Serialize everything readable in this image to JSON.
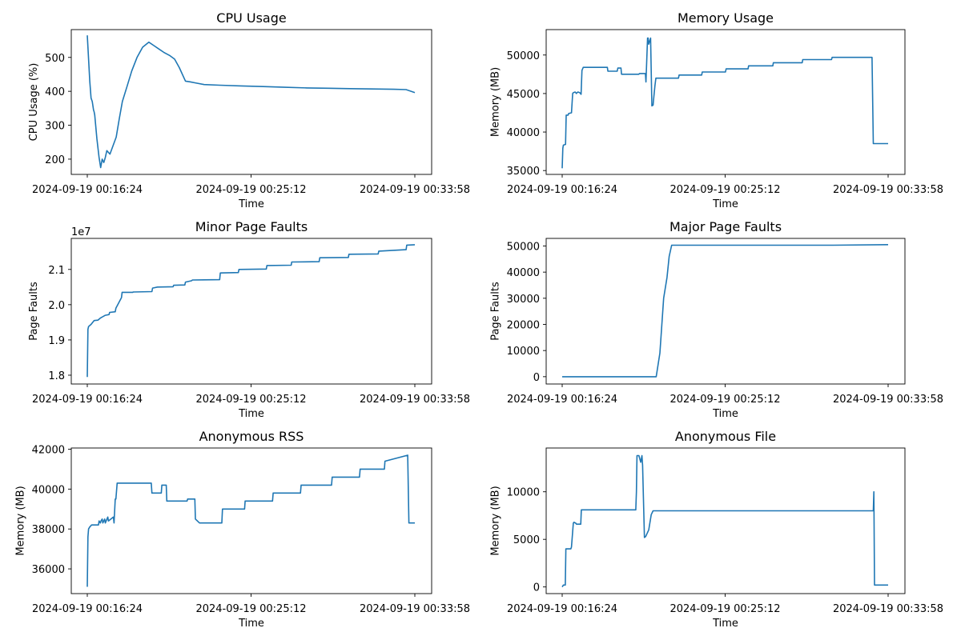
{
  "figure": {
    "line_color": "#1f77b4",
    "background": "#ffffff"
  },
  "chart_data": [
    {
      "type": "line",
      "title": "CPU Usage",
      "xlabel": "Time",
      "ylabel": "CPU Usage (%)",
      "x_ticks": [
        "2024-09-19 00:16:24",
        "2024-09-19 00:25:12",
        "2024-09-19 00:33:58"
      ],
      "y_ticks": [
        "200",
        "300",
        "400",
        "500"
      ],
      "y_tick_values": [
        200,
        300,
        400,
        500
      ],
      "ylim": [
        155,
        582
      ],
      "y_offset_label": "",
      "x": [
        "00:16:24",
        "00:16:32",
        "00:16:36",
        "00:16:40",
        "00:16:44",
        "00:16:46",
        "00:16:48",
        "00:16:55",
        "00:17:02",
        "00:17:07",
        "00:17:12",
        "00:17:17",
        "00:17:22",
        "00:17:27",
        "00:17:37",
        "00:17:47",
        "00:17:57",
        "00:18:07",
        "00:18:17",
        "00:18:32",
        "00:18:47",
        "00:19:04",
        "00:19:22",
        "00:19:42",
        "00:19:58",
        "00:20:14",
        "00:20:30",
        "00:20:50",
        "00:21:05",
        "00:21:20",
        "00:21:40",
        "00:21:55",
        "00:22:12",
        "00:22:40",
        "00:23:30",
        "00:24:40",
        "00:25:50",
        "00:27:00",
        "00:28:10",
        "00:29:20",
        "00:30:30",
        "00:31:40",
        "00:32:50",
        "00:33:30",
        "00:33:58"
      ],
      "series": [
        {
          "values": [
            565,
            430,
            380,
            370,
            345,
            340,
            330,
            260,
            205,
            175,
            200,
            190,
            205,
            225,
            215,
            240,
            265,
            320,
            370,
            415,
            460,
            500,
            530,
            545,
            535,
            525,
            515,
            505,
            495,
            470,
            430,
            428,
            425,
            420,
            418,
            416,
            414,
            412,
            410,
            409,
            408,
            407,
            406,
            405,
            396
          ]
        }
      ]
    },
    {
      "type": "line",
      "title": "Memory Usage",
      "xlabel": "Time",
      "ylabel": "Memory (MB)",
      "x_ticks": [
        "2024-09-19 00:16:24",
        "2024-09-19 00:25:12",
        "2024-09-19 00:33:58"
      ],
      "y_ticks": [
        "35000",
        "40000",
        "45000",
        "50000"
      ],
      "y_tick_values": [
        35000,
        40000,
        45000,
        50000
      ],
      "ylim": [
        34500,
        53300
      ],
      "y_offset_label": "",
      "x": [
        "00:16:24",
        "00:16:26",
        "00:16:28",
        "00:16:35",
        "00:16:37",
        "00:16:43",
        "00:16:45",
        "00:16:54",
        "00:16:58",
        "00:17:00",
        "00:17:06",
        "00:17:10",
        "00:17:12",
        "00:17:15",
        "00:17:21",
        "00:17:25",
        "00:17:28",
        "00:17:32",
        "00:17:35",
        "00:17:37",
        "00:17:40",
        "00:18:50",
        "00:18:52",
        "00:19:22",
        "00:19:24",
        "00:19:34",
        "00:19:36",
        "00:20:32",
        "00:20:34",
        "00:20:53",
        "00:20:55",
        "00:21:00",
        "00:21:02",
        "00:21:04",
        "00:21:10",
        "00:21:14",
        "00:21:18",
        "00:21:20",
        "00:21:24",
        "00:21:27",
        "00:21:32",
        "00:21:42",
        "00:21:52",
        "00:22:40",
        "00:22:42",
        "00:23:55",
        "00:23:57",
        "00:25:12",
        "00:25:14",
        "00:26:25",
        "00:26:27",
        "00:27:45",
        "00:27:47",
        "00:29:20",
        "00:29:22",
        "00:30:55",
        "00:30:57",
        "00:32:31",
        "00:32:33",
        "00:33:06",
        "00:33:10",
        "00:33:58"
      ],
      "series": [
        {
          "values": [
            35300,
            37900,
            38300,
            38400,
            42200,
            42200,
            42400,
            42500,
            45000,
            45100,
            45200,
            45000,
            45100,
            45200,
            45100,
            44900,
            48000,
            48400,
            48400,
            48400,
            48400,
            48400,
            47900,
            47900,
            48300,
            48300,
            47500,
            47500,
            47600,
            47600,
            46500,
            52200,
            52200,
            51400,
            52200,
            43400,
            43500,
            44400,
            46000,
            47000,
            47000,
            47000,
            47000,
            47000,
            47400,
            47400,
            47800,
            47800,
            48200,
            48200,
            48600,
            48600,
            49000,
            49000,
            49400,
            49400,
            49700,
            49700,
            49700,
            49700,
            38500,
            38500
          ]
        }
      ]
    },
    {
      "type": "line",
      "title": "Minor Page Faults",
      "xlabel": "Time",
      "ylabel": "Page Faults",
      "x_ticks": [
        "2024-09-19 00:16:24",
        "2024-09-19 00:25:12",
        "2024-09-19 00:33:58"
      ],
      "y_ticks": [
        "1.8",
        "1.9",
        "2.0",
        "2.1"
      ],
      "y_tick_values": [
        18000000,
        19000000,
        20000000,
        21000000
      ],
      "ylim": [
        17750000,
        21880000
      ],
      "y_offset_label": "1e7",
      "x": [
        "00:16:24",
        "00:16:26",
        "00:16:28",
        "00:16:36",
        "00:16:46",
        "00:16:58",
        "00:17:06",
        "00:17:22",
        "00:17:34",
        "00:17:36",
        "00:17:54",
        "00:17:56",
        "00:18:14",
        "00:18:16",
        "00:18:50",
        "00:18:52",
        "00:19:52",
        "00:19:54",
        "00:20:10",
        "00:20:12",
        "00:21:00",
        "00:21:02",
        "00:21:38",
        "00:21:40",
        "00:22:00",
        "00:22:02",
        "00:23:30",
        "00:23:32",
        "00:24:30",
        "00:24:32",
        "00:26:00",
        "00:26:02",
        "00:27:20",
        "00:27:22",
        "00:28:50",
        "00:28:52",
        "00:30:24",
        "00:30:26",
        "00:32:00",
        "00:32:02",
        "00:33:30",
        "00:33:32",
        "00:33:58"
      ],
      "series": [
        {
          "values": [
            17950000,
            19300000,
            19380000,
            19440000,
            19550000,
            19560000,
            19620000,
            19700000,
            19720000,
            19780000,
            19800000,
            19900000,
            20200000,
            20350000,
            20350000,
            20360000,
            20370000,
            20470000,
            20500000,
            20500000,
            20510000,
            20550000,
            20560000,
            20640000,
            20680000,
            20700000,
            20710000,
            20900000,
            20910000,
            21000000,
            21010000,
            21110000,
            21120000,
            21210000,
            21220000,
            21330000,
            21340000,
            21430000,
            21440000,
            21520000,
            21560000,
            21690000,
            21700000
          ]
        }
      ]
    },
    {
      "type": "line",
      "title": "Major Page Faults",
      "xlabel": "Time",
      "ylabel": "Page Faults",
      "x_ticks": [
        "2024-09-19 00:16:24",
        "2024-09-19 00:25:12",
        "2024-09-19 00:33:58"
      ],
      "y_ticks": [
        "0",
        "10000",
        "20000",
        "30000",
        "40000",
        "50000"
      ],
      "y_tick_values": [
        0,
        10000,
        20000,
        30000,
        40000,
        50000
      ],
      "ylim": [
        -2800,
        52900
      ],
      "y_offset_label": "",
      "x": [
        "00:16:24",
        "00:20:00",
        "00:21:28",
        "00:21:40",
        "00:21:52",
        "00:22:03",
        "00:22:10",
        "00:22:18",
        "00:22:40",
        "00:25:12",
        "00:28:00",
        "00:31:00",
        "00:33:58"
      ],
      "series": [
        {
          "values": [
            0,
            0,
            0,
            9000,
            30000,
            38000,
            46000,
            50300,
            50300,
            50300,
            50300,
            50300,
            50500
          ]
        }
      ]
    },
    {
      "type": "line",
      "title": "Anonymous RSS",
      "xlabel": "Time",
      "ylabel": "Memory (MB)",
      "x_ticks": [
        "2024-09-19 00:16:24",
        "2024-09-19 00:25:12",
        "2024-09-19 00:33:58"
      ],
      "y_ticks": [
        "36000",
        "38000",
        "40000",
        "42000"
      ],
      "y_tick_values": [
        36000,
        38000,
        40000,
        42000
      ],
      "ylim": [
        34760,
        42060
      ],
      "y_offset_label": "",
      "x": [
        "00:16:24",
        "00:16:26",
        "00:16:28",
        "00:16:32",
        "00:16:38",
        "00:17:00",
        "00:17:02",
        "00:17:06",
        "00:17:08",
        "00:17:12",
        "00:17:14",
        "00:17:20",
        "00:17:22",
        "00:17:30",
        "00:17:32",
        "00:17:48",
        "00:17:50",
        "00:17:54",
        "00:17:56",
        "00:18:00",
        "00:18:02",
        "00:19:50",
        "00:19:52",
        "00:20:22",
        "00:20:24",
        "00:20:38",
        "00:20:40",
        "00:21:45",
        "00:21:47",
        "00:22:10",
        "00:22:12",
        "00:22:25",
        "00:22:27",
        "00:22:50",
        "00:22:52",
        "00:23:37",
        "00:23:39",
        "00:24:50",
        "00:24:52",
        "00:26:20",
        "00:26:22",
        "00:27:50",
        "00:27:52",
        "00:29:30",
        "00:29:32",
        "00:31:00",
        "00:31:02",
        "00:32:20",
        "00:32:22",
        "00:33:35",
        "00:33:39",
        "00:33:58"
      ],
      "series": [
        {
          "values": [
            35100,
            37600,
            38000,
            38100,
            38200,
            38200,
            38400,
            38300,
            38400,
            38500,
            38300,
            38500,
            38300,
            38600,
            38400,
            38600,
            38300,
            39500,
            39500,
            40300,
            40300,
            40300,
            39800,
            39800,
            40200,
            40200,
            39400,
            39400,
            39500,
            39500,
            38500,
            38300,
            38300,
            38300,
            38300,
            38300,
            39000,
            39000,
            39400,
            39400,
            39800,
            39800,
            40200,
            40200,
            40600,
            40600,
            41000,
            41000,
            41400,
            41700,
            38300,
            38300
          ]
        }
      ]
    },
    {
      "type": "line",
      "title": "Anonymous File",
      "xlabel": "Time",
      "ylabel": "Memory (MB)",
      "x_ticks": [
        "2024-09-19 00:16:24",
        "2024-09-19 00:25:12",
        "2024-09-19 00:33:58"
      ],
      "y_ticks": [
        "0",
        "5000",
        "10000"
      ],
      "y_tick_values": [
        0,
        5000,
        10000
      ],
      "ylim": [
        -700,
        14600
      ],
      "y_offset_label": "",
      "x": [
        "00:16:24",
        "00:16:28",
        "00:16:34",
        "00:16:36",
        "00:16:52",
        "00:16:54",
        "00:17:00",
        "00:17:02",
        "00:17:08",
        "00:17:10",
        "00:17:24",
        "00:17:26",
        "00:17:30",
        "00:20:22",
        "00:20:24",
        "00:20:26",
        "00:20:32",
        "00:20:38",
        "00:20:42",
        "00:20:44",
        "00:20:50",
        "00:20:54",
        "00:21:04",
        "00:21:12",
        "00:21:18",
        "00:21:26",
        "00:21:30",
        "00:22:10",
        "00:25:12",
        "00:28:00",
        "00:31:00",
        "00:33:10",
        "00:33:12",
        "00:33:14",
        "00:33:16",
        "00:33:58"
      ],
      "series": [
        {
          "values": [
            0,
            200,
            200,
            4000,
            4000,
            4200,
            6700,
            6800,
            6700,
            6600,
            6600,
            8100,
            8100,
            8100,
            10000,
            13800,
            13800,
            13100,
            13800,
            12800,
            5200,
            5300,
            6000,
            7600,
            8000,
            8000,
            8000,
            8000,
            8000,
            8000,
            8000,
            8000,
            10000,
            200,
            200,
            200
          ]
        }
      ]
    }
  ]
}
